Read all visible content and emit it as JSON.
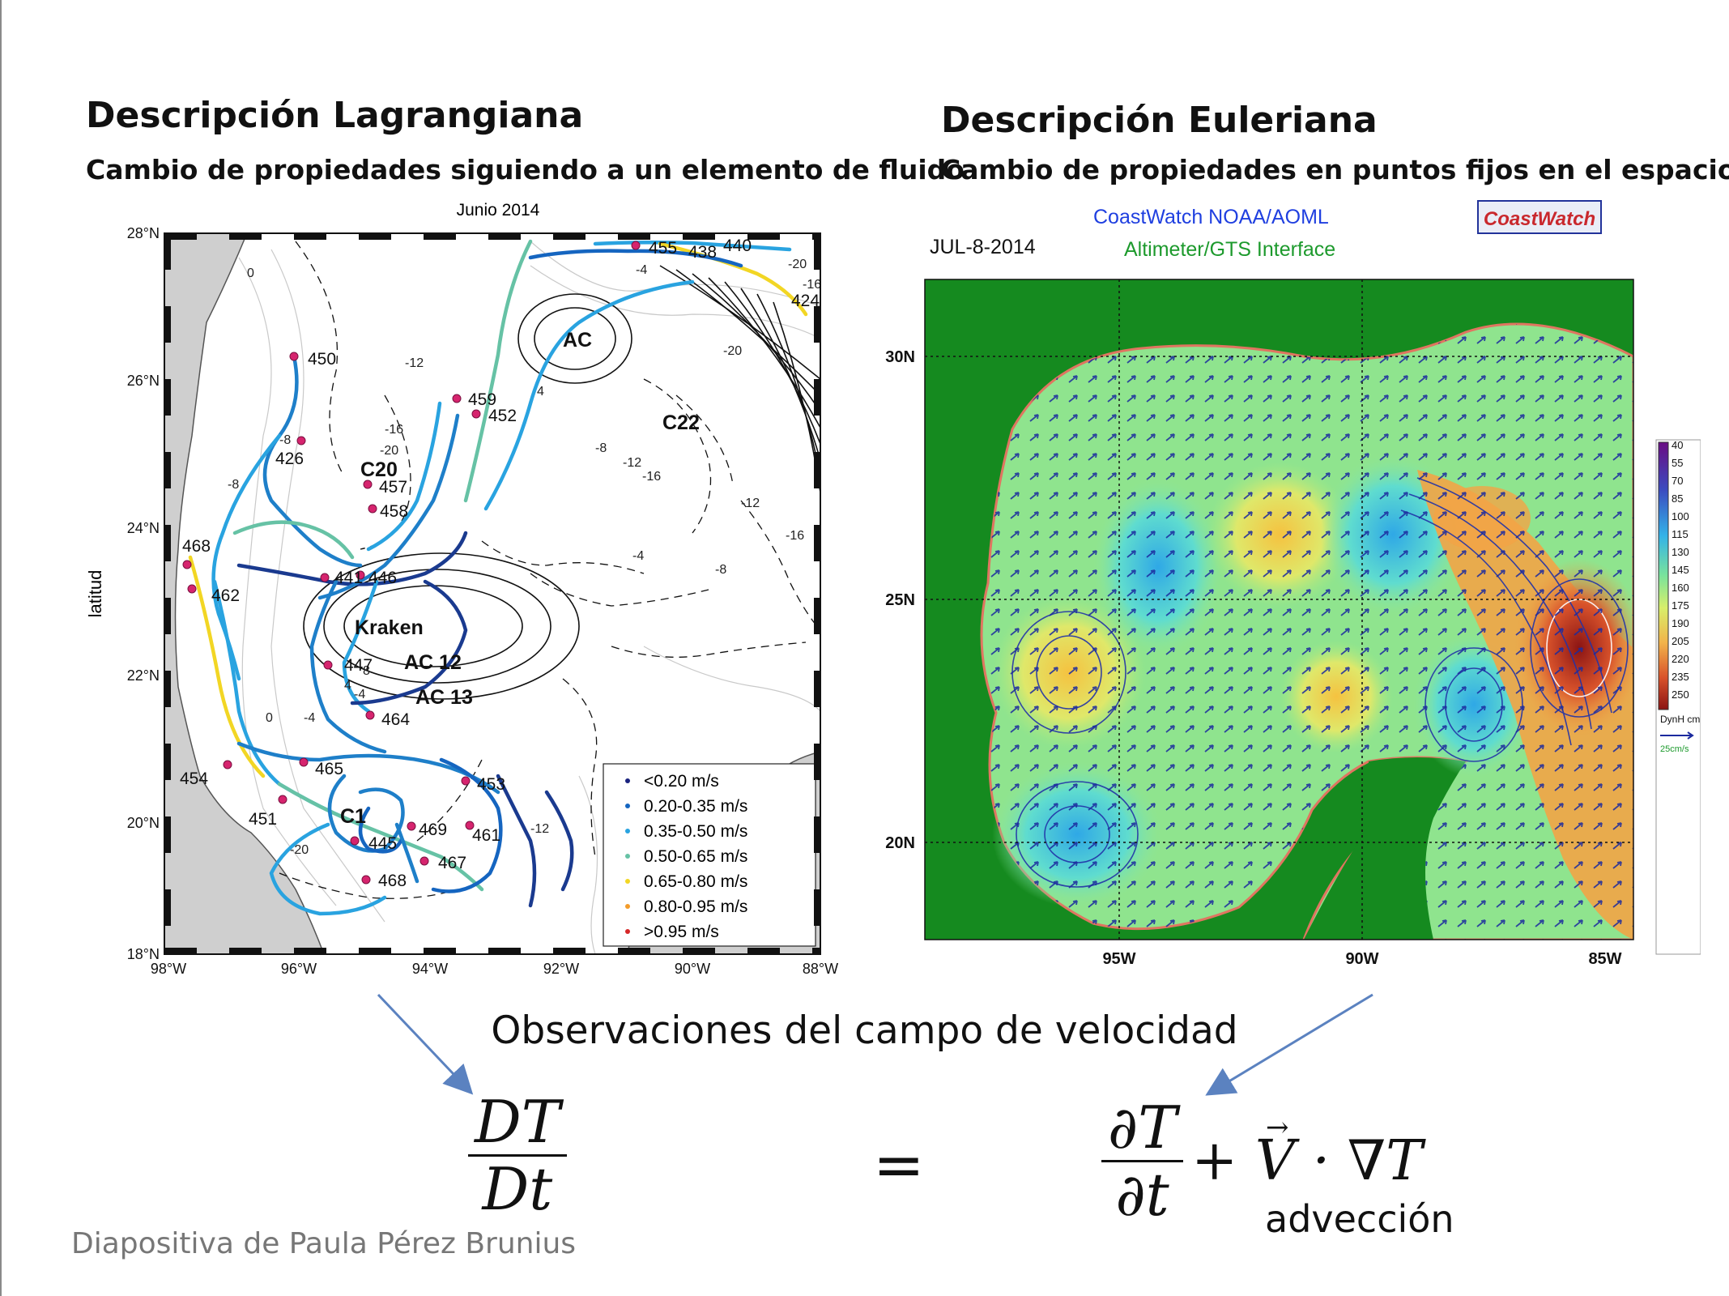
{
  "slide": {
    "left_title": "Descripción Lagrangiana",
    "left_subtitle": "Cambio de propiedades siguiendo a un elemento de fluido",
    "right_title": "Descripción Euleriana",
    "right_subtitle": "Cambio de propiedades en puntos fijos en el espacio",
    "observations": "Observaciones del campo de velocidad",
    "advection": "advección",
    "credit": "Diapositiva de Paula Pérez Brunius",
    "equation": {
      "lhs_num": "DT",
      "lhs_den": "Dt",
      "equals": "=",
      "rhs_num": "∂T",
      "rhs_den": "∂t",
      "rhs_rest": "+ V · ∇T"
    }
  },
  "lagrangian_map": {
    "title": "Junio 2014",
    "ylabel": "latitud",
    "lat_ticks": [
      "28°N",
      "26°N",
      "24°N",
      "22°N",
      "20°N",
      "18°N"
    ],
    "lon_ticks": [
      "98°W",
      "96°W",
      "94°W",
      "92°W",
      "90°W",
      "88°W"
    ],
    "features": [
      "AC",
      "C22",
      "C20",
      "Kraken",
      "AC 12",
      "AC 13",
      "C1"
    ],
    "drifter_ids": [
      "455",
      "438",
      "440",
      "424",
      "450",
      "459",
      "452",
      "426",
      "457",
      "458",
      "468",
      "462",
      "441",
      "446",
      "447",
      "464",
      "454",
      "465",
      "453",
      "451",
      "469",
      "461",
      "445",
      "467",
      "468"
    ],
    "contour_labels": [
      "0",
      "-4",
      "-8",
      "-12",
      "-16",
      "-20",
      "4",
      "8",
      "-4",
      "-8",
      "-12",
      "-16",
      "-16",
      "-4",
      "-8",
      "0",
      "-4",
      "8",
      "4",
      "-12",
      "-20",
      "-16",
      "-20",
      "-20",
      "-16",
      "-16"
    ],
    "legend": [
      "<0.20 m/s",
      "0.20-0.35 m/s",
      "0.35-0.50 m/s",
      "0.50-0.65 m/s",
      "0.65-0.80 m/s",
      "0.80-0.95 m/s",
      ">0.95 m/s"
    ],
    "legend_colors": [
      "#1a237e",
      "#1565c0",
      "#29a3e0",
      "#66c2a5",
      "#f2d624",
      "#f39c2b",
      "#d62728"
    ]
  },
  "eulerian_map": {
    "brand_line1": "CoastWatch  NOAA/AOML",
    "brand_line2": "Altimeter/GTS Interface",
    "date": "JUL-8-2014",
    "logo_text": "CoastWatch",
    "lat_ticks": [
      "30N",
      "25N",
      "20N"
    ],
    "lon_ticks": [
      "95W",
      "90W",
      "85W"
    ],
    "colorbar_values": [
      "40",
      "55",
      "70",
      "85",
      "100",
      "115",
      "130",
      "145",
      "160",
      "175",
      "190",
      "205",
      "220",
      "235",
      "250"
    ],
    "colorbar_unit": "DynH cm",
    "vector_scale": "25cm/s"
  }
}
